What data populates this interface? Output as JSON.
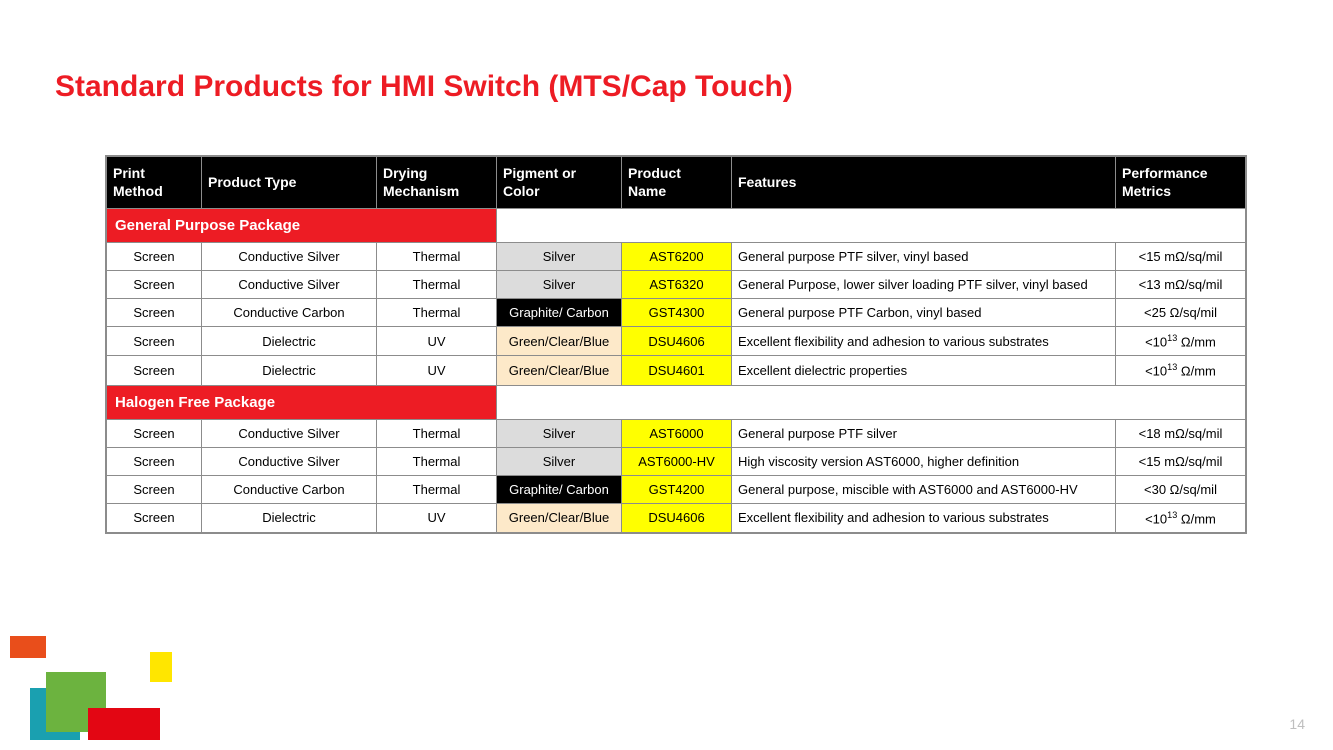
{
  "title": "Standard Products for HMI Switch (MTS/Cap Touch)",
  "page_number": "14",
  "colors": {
    "title": "#ed1c24",
    "header_bg": "#000000",
    "header_fg": "#ffffff",
    "section_bg": "#ed1c24",
    "section_fg": "#ffffff",
    "pigment_silver_bg": "#dcdcdc",
    "pigment_carbon_bg": "#000000",
    "pigment_carbon_fg": "#ffffff",
    "pigment_green_bg": "#fde9c9",
    "product_name_bg": "#ffff00",
    "border": "#8c8c8c"
  },
  "table": {
    "columns": [
      "Print Method",
      "Product Type",
      "Drying Mechanism",
      "Pigment or Color",
      "Product Name",
      "Features",
      "Performance Metrics"
    ],
    "sections": [
      {
        "label": "General Purpose Package",
        "rows": [
          {
            "print": "Screen",
            "type": "Conductive Silver",
            "dry": "Thermal",
            "pigment": "Silver",
            "pigclass": "silver",
            "name": "AST6200",
            "features": "General purpose PTF silver, vinyl based",
            "perf": "<15 mΩ/sq/mil"
          },
          {
            "print": "Screen",
            "type": "Conductive Silver",
            "dry": "Thermal",
            "pigment": "Silver",
            "pigclass": "silver",
            "name": "AST6320",
            "features": "General Purpose, lower silver loading PTF silver, vinyl based",
            "perf": "<13 mΩ/sq/mil"
          },
          {
            "print": "Screen",
            "type": "Conductive Carbon",
            "dry": "Thermal",
            "pigment": "Graphite/ Carbon",
            "pigclass": "carbon",
            "name": "GST4300",
            "features": "General purpose PTF Carbon, vinyl based",
            "perf": "<25 Ω/sq/mil"
          },
          {
            "print": "Screen",
            "type": "Dielectric",
            "dry": "UV",
            "pigment": "Green/Clear/Blue",
            "pigclass": "green",
            "name": "DSU4606",
            "features": "Excellent flexibility and adhesion to various substrates",
            "perf": "<10^13 Ω/mm"
          },
          {
            "print": "Screen",
            "type": "Dielectric",
            "dry": "UV",
            "pigment": "Green/Clear/Blue",
            "pigclass": "green",
            "name": "DSU4601",
            "features": "Excellent dielectric properties",
            "perf": "<10^13 Ω/mm"
          }
        ]
      },
      {
        "label": "Halogen Free Package",
        "rows": [
          {
            "print": "Screen",
            "type": "Conductive Silver",
            "dry": "Thermal",
            "pigment": "Silver",
            "pigclass": "silver",
            "name": "AST6000",
            "features": "General purpose PTF silver",
            "perf": "<18 mΩ/sq/mil"
          },
          {
            "print": "Screen",
            "type": "Conductive Silver",
            "dry": "Thermal",
            "pigment": "Silver",
            "pigclass": "silver",
            "name": "AST6000-HV",
            "features": "High viscosity version AST6000, higher definition",
            "perf": "<15 mΩ/sq/mil"
          },
          {
            "print": "Screen",
            "type": "Conductive Carbon",
            "dry": "Thermal",
            "pigment": "Graphite/ Carbon",
            "pigclass": "carbon",
            "name": "GST4200",
            "features": "General purpose, miscible with AST6000 and AST6000-HV",
            "perf": "<30 Ω/sq/mil"
          },
          {
            "print": "Screen",
            "type": "Dielectric",
            "dry": "UV",
            "pigment": "Green/Clear/Blue",
            "pigclass": "green",
            "name": "DSU4606",
            "features": "Excellent flexibility and adhesion to various substrates",
            "perf": "<10^13 Ω/mm"
          }
        ]
      }
    ]
  },
  "decoration": {
    "squares": [
      {
        "color": "#e94e1b"
      },
      {
        "color": "#ffe600"
      },
      {
        "color": "#1aa0b0"
      },
      {
        "color": "#6cb33f"
      },
      {
        "color": "#e30613"
      }
    ]
  }
}
